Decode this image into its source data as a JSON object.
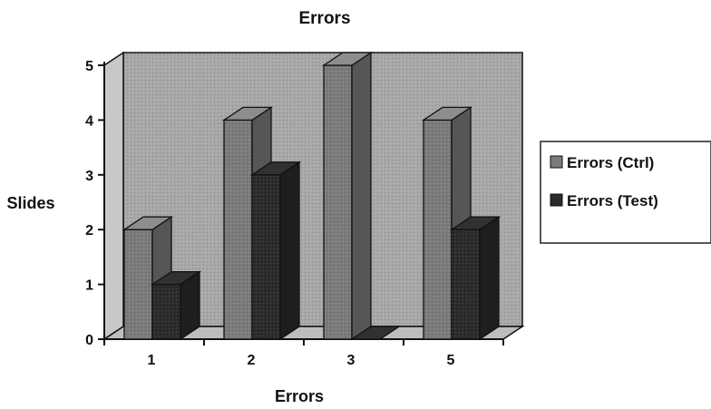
{
  "chart_data": {
    "type": "bar",
    "style": "3d-clustered-column",
    "title": "Errors",
    "xlabel": "Errors",
    "ylabel": "Slides",
    "categories": [
      "1",
      "2",
      "3",
      "5"
    ],
    "series": [
      {
        "name": "Errors (Ctrl)",
        "values": [
          2,
          4,
          5,
          4
        ],
        "color": "#7b7b7b"
      },
      {
        "name": "Errors (Test)",
        "values": [
          1,
          3,
          0,
          2
        ],
        "color": "#2b2b2b"
      }
    ],
    "ylim": [
      0,
      5
    ],
    "yticks": [
      "0",
      "1",
      "2",
      "3",
      "4",
      "5"
    ],
    "grid": false,
    "legend_position": "right",
    "colors": {
      "wall": "#a8a8a8",
      "floor": "#bdbdbd",
      "side_wall": "#c8c8c8",
      "axis": "#111111"
    }
  }
}
